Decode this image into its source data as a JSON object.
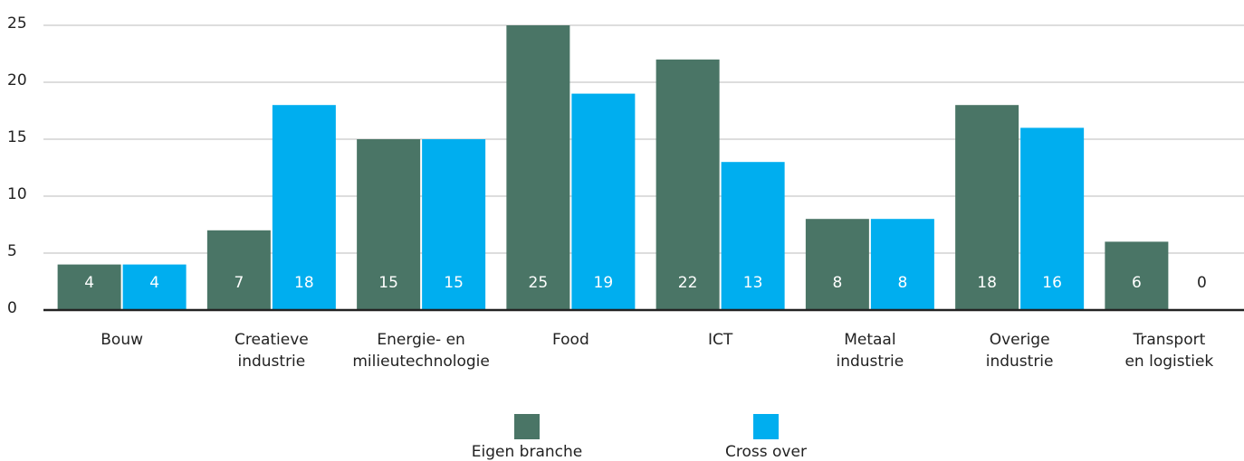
{
  "chart_data": {
    "type": "bar",
    "categories": [
      "Bouw",
      "Creatieve\nindustrie",
      "Energie- en\nmilieutechnologie",
      "Food",
      "ICT",
      "Metaal\nindustrie",
      "Overige\nindustrie",
      "Transport\nen logistiek"
    ],
    "series": [
      {
        "name": "Eigen branche",
        "color": "#4a7566",
        "values": [
          4,
          7,
          15,
          25,
          22,
          8,
          18,
          6
        ]
      },
      {
        "name": "Cross over",
        "color": "#00aeef",
        "values": [
          4,
          18,
          15,
          19,
          13,
          8,
          16,
          0
        ]
      }
    ],
    "ylim": [
      0,
      25
    ],
    "yticks": [
      0,
      5,
      10,
      15,
      20,
      25
    ],
    "grid": true
  }
}
